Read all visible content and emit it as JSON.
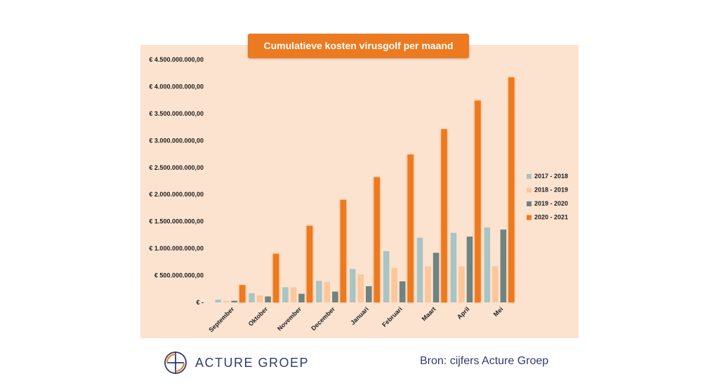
{
  "chart_data": {
    "type": "bar",
    "title": "Cumulatieve kosten virusgolf per maand",
    "categories": [
      "September",
      "Oktober",
      "November",
      "December",
      "Januari",
      "Februari",
      "Maart",
      "April",
      "Mei"
    ],
    "ylim": [
      0,
      4500000000
    ],
    "yticks": [
      {
        "value": 0,
        "label": "€ -"
      },
      {
        "value": 500000000,
        "label": "€ 500.000.000,00"
      },
      {
        "value": 1000000000,
        "label": "€ 1.000.000.000,00"
      },
      {
        "value": 1500000000,
        "label": "€ 1.500.000.000,00"
      },
      {
        "value": 2000000000,
        "label": "€ 2.000.000.000,00"
      },
      {
        "value": 2500000000,
        "label": "€ 2.500.000.000,00"
      },
      {
        "value": 3000000000,
        "label": "€ 3.000.000.000,00"
      },
      {
        "value": 3500000000,
        "label": "€ 3.500.000.000,00"
      },
      {
        "value": 4000000000,
        "label": "€ 4.000.000.000,00"
      },
      {
        "value": 4500000000,
        "label": "€ 4.500.000.000,00"
      }
    ],
    "legend_position": "right",
    "series": [
      {
        "name": "2017 - 2018",
        "color": "#a9c4c4",
        "values": [
          50000000,
          170000000,
          280000000,
          400000000,
          620000000,
          950000000,
          1200000000,
          1290000000,
          1390000000
        ]
      },
      {
        "name": "2018 - 2019",
        "color": "#fbc79b",
        "values": [
          30000000,
          130000000,
          280000000,
          380000000,
          520000000,
          640000000,
          670000000,
          670000000,
          670000000
        ]
      },
      {
        "name": "2019 - 2020",
        "color": "#6f8381",
        "values": [
          30000000,
          110000000,
          160000000,
          200000000,
          300000000,
          390000000,
          920000000,
          1220000000,
          1350000000
        ]
      },
      {
        "name": "2020 - 2021",
        "color": "#ec7a20",
        "values": [
          320000000,
          900000000,
          1420000000,
          1900000000,
          2320000000,
          2740000000,
          3210000000,
          3740000000,
          4170000000
        ]
      }
    ]
  },
  "footer": {
    "logo_text": "ACTURE GROEP",
    "source": "Bron: cijfers Acture Groep"
  },
  "colors": {
    "panel_bg": "#fbe3cf",
    "title_bg": "#ec7a20",
    "brand_navy": "#2d3c6e"
  }
}
